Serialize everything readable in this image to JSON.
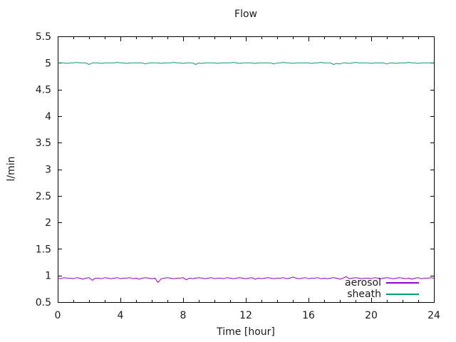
{
  "chart_data": {
    "type": "line",
    "title": "Flow",
    "xlabel": "Time [hour]",
    "ylabel": "l/min",
    "xlim": [
      0,
      24
    ],
    "ylim": [
      0.5,
      5.5
    ],
    "xticks": {
      "major": [
        0,
        4,
        8,
        12,
        16,
        20,
        24
      ],
      "minor_step": 1
    },
    "yticks": [
      0.5,
      1,
      1.5,
      2,
      2.5,
      3,
      3.5,
      4,
      4.5,
      5,
      5.5
    ],
    "grid": false,
    "legend": {
      "position": "inside-bottom-right"
    },
    "x_start": 0,
    "x_step": 0.2,
    "series": [
      {
        "name": "aerosol",
        "color": "#9400d3",
        "mean": 0.95,
        "values": [
          0.95,
          0.94,
          0.96,
          0.95,
          0.95,
          0.94,
          0.96,
          0.95,
          0.93,
          0.95,
          0.96,
          0.91,
          0.95,
          0.95,
          0.94,
          0.96,
          0.95,
          0.94,
          0.95,
          0.96,
          0.94,
          0.95,
          0.95,
          0.96,
          0.94,
          0.95,
          0.93,
          0.95,
          0.96,
          0.95,
          0.94,
          0.95,
          0.87,
          0.94,
          0.95,
          0.96,
          0.95,
          0.94,
          0.95,
          0.95,
          0.96,
          0.92,
          0.95,
          0.94,
          0.95,
          0.96,
          0.95,
          0.94,
          0.95,
          0.96,
          0.94,
          0.95,
          0.95,
          0.94,
          0.96,
          0.95,
          0.94,
          0.95,
          0.96,
          0.95,
          0.94,
          0.95,
          0.96,
          0.93,
          0.95,
          0.94,
          0.95,
          0.96,
          0.95,
          0.94,
          0.95,
          0.95,
          0.96,
          0.94,
          0.95,
          0.97,
          0.95,
          0.94,
          0.95,
          0.96,
          0.94,
          0.95,
          0.95,
          0.96,
          0.94,
          0.95,
          0.94,
          0.95,
          0.96,
          0.95,
          0.93,
          0.95,
          0.98,
          0.94,
          0.95,
          0.96,
          0.95,
          0.94,
          0.95,
          0.95,
          0.94,
          0.96,
          0.95,
          0.94,
          0.95,
          0.96,
          0.95,
          0.94,
          0.95,
          0.96,
          0.95,
          0.94,
          0.95,
          0.93,
          0.95,
          0.96,
          0.94,
          0.95,
          0.95,
          0.96,
          0.95
        ]
      },
      {
        "name": "sheath",
        "color": "#009e73",
        "mean": 5.0,
        "values": [
          5.0,
          5.0,
          5.0,
          4.99,
          5.0,
          5.0,
          5.01,
          5.0,
          5.0,
          5.0,
          4.97,
          5.0,
          5.0,
          5.0,
          4.99,
          5.0,
          5.0,
          5.0,
          5.0,
          5.01,
          5.0,
          5.0,
          4.99,
          5.0,
          5.0,
          5.0,
          5.0,
          5.0,
          4.98,
          5.0,
          5.0,
          5.0,
          5.0,
          4.99,
          5.0,
          5.0,
          5.0,
          5.01,
          5.0,
          5.0,
          4.99,
          5.0,
          5.0,
          5.0,
          4.97,
          5.0,
          4.99,
          5.0,
          5.0,
          5.0,
          5.0,
          4.99,
          5.0,
          5.0,
          5.0,
          5.0,
          5.01,
          5.0,
          4.99,
          5.0,
          5.0,
          5.0,
          5.0,
          4.99,
          5.0,
          5.0,
          5.0,
          5.0,
          5.0,
          4.98,
          5.0,
          5.0,
          5.01,
          5.0,
          5.0,
          4.99,
          5.0,
          5.0,
          5.0,
          5.0,
          5.0,
          4.99,
          5.0,
          5.0,
          5.01,
          5.0,
          5.0,
          5.0,
          4.97,
          4.99,
          4.98,
          5.0,
          5.0,
          4.99,
          5.0,
          5.01,
          5.0,
          5.0,
          5.0,
          5.0,
          4.99,
          5.0,
          5.0,
          5.0,
          5.0,
          4.98,
          5.0,
          5.0,
          4.99,
          5.0,
          5.0,
          5.0,
          5.01,
          5.0,
          5.0,
          4.99,
          5.0,
          5.0,
          5.0,
          5.0,
          5.0
        ]
      }
    ]
  },
  "colors": {
    "background": "#ffffff",
    "frame": "#000000",
    "text": "#1a1a1a"
  }
}
